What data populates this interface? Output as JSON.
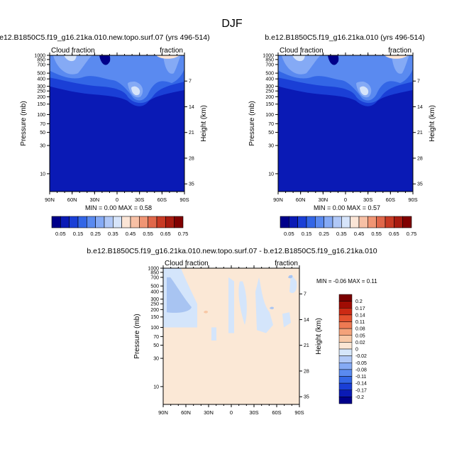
{
  "figure": {
    "title": "DJF"
  },
  "chart_data": [
    {
      "type": "heatmap",
      "title": "b.e12.B1850C5.f19_g16.21ka.010.new.topo.surf.07 (yrs 496-514)",
      "left_string": "Cloud fraction",
      "right_string": "fraction",
      "ylabel": "Pressure (mb)",
      "ylabel_right": "Height (km)",
      "x_ticks": [
        "90N",
        "60N",
        "30N",
        "0",
        "30S",
        "60S",
        "90S"
      ],
      "y_ticks": [
        10,
        30,
        50,
        70,
        100,
        150,
        200,
        250,
        300,
        400,
        500,
        700,
        850,
        1000
      ],
      "y_ticks_right": [
        35,
        28,
        21,
        14,
        7
      ],
      "ylim": [
        1000,
        1
      ],
      "y_scale": "log",
      "min_label": "MIN =   0.00",
      "max_label": "MAX =   0.58",
      "min": 0.0,
      "max": 0.58,
      "colorbar": {
        "orientation": "horizontal",
        "labels": [
          "0.05",
          "0.15",
          "0.25",
          "0.35",
          "0.45",
          "0.55",
          "0.65",
          "0.75"
        ],
        "levels": [
          0.05,
          0.1,
          0.15,
          0.2,
          0.25,
          0.3,
          0.35,
          0.4,
          0.45,
          0.5,
          0.55,
          0.6,
          0.65,
          0.7,
          0.75
        ]
      }
    },
    {
      "type": "heatmap",
      "title": "b.e12.B1850C5.f19_g16.21ka.010 (yrs 496-514)",
      "left_string": "Cloud fraction",
      "right_string": "fraction",
      "ylabel": "Pressure (mb)",
      "ylabel_right": "Height (km)",
      "x_ticks": [
        "90N",
        "60N",
        "30N",
        "0",
        "30S",
        "60S",
        "90S"
      ],
      "y_ticks": [
        10,
        30,
        50,
        70,
        100,
        150,
        200,
        250,
        300,
        400,
        500,
        700,
        850,
        1000
      ],
      "y_ticks_right": [
        35,
        28,
        21,
        14,
        7
      ],
      "ylim": [
        1000,
        1
      ],
      "y_scale": "log",
      "min_label": "MIN =   0.00",
      "max_label": "MAX =   0.57",
      "min": 0.0,
      "max": 0.57,
      "colorbar": {
        "orientation": "horizontal",
        "labels": [
          "0.05",
          "0.15",
          "0.25",
          "0.35",
          "0.45",
          "0.55",
          "0.65",
          "0.75"
        ],
        "levels": [
          0.05,
          0.1,
          0.15,
          0.2,
          0.25,
          0.3,
          0.35,
          0.4,
          0.45,
          0.5,
          0.55,
          0.6,
          0.65,
          0.7,
          0.75
        ]
      }
    },
    {
      "type": "heatmap",
      "title": "b.e12.B1850C5.f19_g16.21ka.010.new.topo.surf.07 - b.e12.B1850C5.f19_g16.21ka.010",
      "left_string": "Cloud fraction",
      "right_string": "fraction",
      "ylabel": "Pressure (mb)",
      "ylabel_right": "Height (km)",
      "x_ticks": [
        "90N",
        "60N",
        "30N",
        "0",
        "30S",
        "60S",
        "90S"
      ],
      "y_ticks": [
        10,
        30,
        50,
        70,
        100,
        150,
        200,
        250,
        300,
        400,
        500,
        700,
        850,
        1000
      ],
      "y_ticks_right": [
        35,
        28,
        21,
        14,
        7
      ],
      "ylim": [
        1000,
        1
      ],
      "y_scale": "log",
      "min_label": "MIN = -0.06",
      "max_label": "MAX =   0.11",
      "min": -0.06,
      "max": 0.11,
      "colorbar": {
        "orientation": "vertical",
        "labels": [
          "0.2",
          "0.17",
          "0.14",
          "0.11",
          "0.08",
          "0.05",
          "0.02",
          "0",
          "-0.02",
          "-0.05",
          "-0.08",
          "-0.11",
          "-0.14",
          "-0.17",
          "-0.2"
        ],
        "levels": [
          0.2,
          0.17,
          0.14,
          0.11,
          0.08,
          0.05,
          0.02,
          0,
          -0.02,
          -0.05,
          -0.08,
          -0.11,
          -0.14,
          -0.17,
          -0.2
        ]
      }
    }
  ],
  "palettes": {
    "abs": [
      "#00008a",
      "#0a1ab5",
      "#1a3fd6",
      "#3366e6",
      "#5a8af0",
      "#85aaf5",
      "#b0c8f7",
      "#d6e4fa",
      "#fbe5d6",
      "#f7c0a5",
      "#f09574",
      "#e0674a",
      "#c83a24",
      "#a81b10",
      "#800000"
    ],
    "diff": [
      "#00008a",
      "#0a1ab5",
      "#1a3fd6",
      "#3366e6",
      "#5a8af0",
      "#85aaf5",
      "#b0c8f7",
      "#d6e6fa",
      "#fbe6d4",
      "#f8c8a6",
      "#f4a27a",
      "#ee7a52",
      "#e4512e",
      "#cc2a14",
      "#a00c04",
      "#7a0000"
    ],
    "diff_background": "#fbe8d6",
    "diff_blue": "#d4e5fb",
    "diff_blue2": "#a8c4f2",
    "diff_orange": "#f8c8a6",
    "abs_background": "#0a1ab5"
  }
}
